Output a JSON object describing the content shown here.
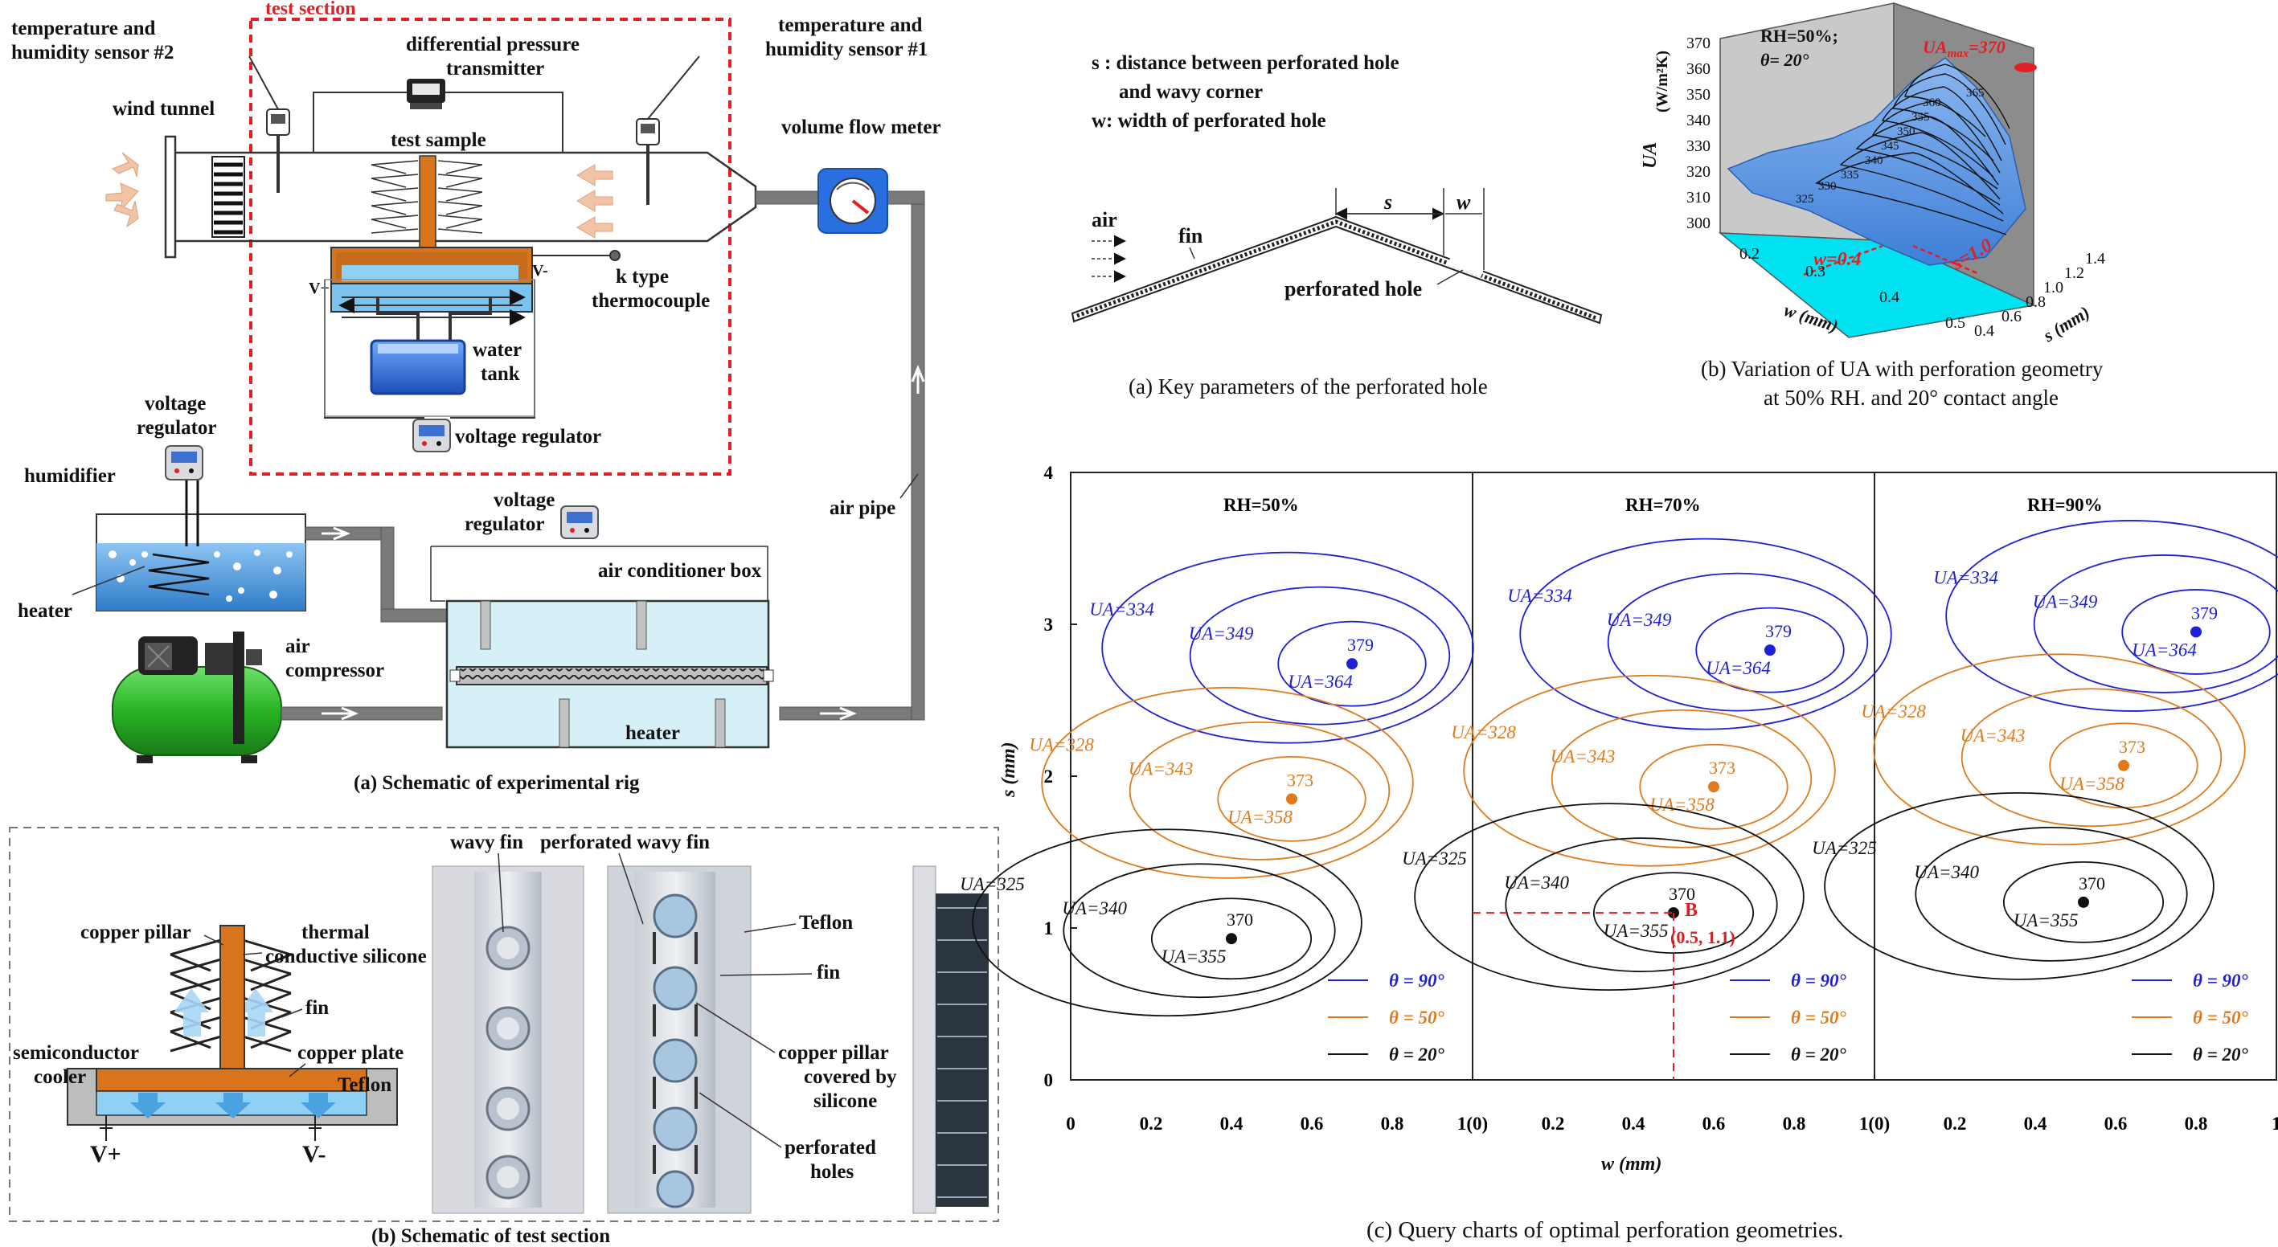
{
  "rig": {
    "test_section": "test section",
    "sensor2": [
      "temperature and",
      "humidity sensor #2"
    ],
    "sensor1": [
      "temperature and",
      "humidity sensor #1"
    ],
    "dp": [
      "differential pressure",
      "transmitter"
    ],
    "wind_tunnel": "wind tunnel",
    "test_sample": "test sample",
    "volume_flow_meter": "volume flow meter",
    "k_type": [
      "k type",
      "thermocouple"
    ],
    "v_plus": "V+",
    "v_minus": "V-",
    "water_tank": [
      "water",
      "tank"
    ],
    "voltage_regulator_inline": "voltage regulator",
    "voltage_regulator_left": [
      "voltage",
      "regulator"
    ],
    "voltage_regulator_mid": [
      "voltage",
      "regulator"
    ],
    "humidifier": "humidifier",
    "heater_left": "heater",
    "air_pipe": "air pipe",
    "air_conditioner_box": "air conditioner box",
    "air_compressor": [
      "air",
      "compressor"
    ],
    "heater_box": "heater",
    "caption": "(a) Schematic of experimental rig"
  },
  "section": {
    "copper_pillar": "copper pillar",
    "thermal": [
      "thermal",
      "conductive silicone"
    ],
    "fin": "fin",
    "semiconductor": [
      "semiconductor",
      "cooler"
    ],
    "copper_plate": "copper plate",
    "teflon": "Teflon",
    "v_plus": "V+",
    "v_minus": "V-",
    "wavy_fin": "wavy fin",
    "perforated_wavy_fin": "perforated wavy fin",
    "photo_teflon": "Teflon",
    "photo_fin": "fin",
    "copper_covered": [
      "copper pillar",
      "covered by",
      "silicone"
    ],
    "perforated_holes": [
      "perforated",
      "holes"
    ],
    "caption": "(b) Schematic of test section"
  },
  "key_params": {
    "s_def": [
      "s :  distance between perforated hole",
      "and wavy corner"
    ],
    "w_def": "w:  width of perforated hole",
    "air": "air",
    "fin": "fin",
    "s": "s",
    "w": "w",
    "perforated_hole": "perforated hole",
    "caption": "(a) Key parameters of the perforated hole"
  },
  "surface": {
    "rh_label": "RH=50%;",
    "theta_label": "θ= 20°",
    "ua_max": "UA",
    "ua_max_sub": "max",
    "ua_max_val": "=370",
    "w_marker": "w=0.4",
    "s_marker": "s=1.0",
    "z_axis": "UA",
    "z_unit": "(W/m²K)",
    "z_ticks": [
      "370",
      "360",
      "350",
      "340",
      "330",
      "320",
      "310",
      "300"
    ],
    "w_ticks": [
      "0.2",
      "0.3",
      "0.4",
      "0.5"
    ],
    "s_ticks": [
      "0.4",
      "0.6",
      "0.8",
      "1.0",
      "1.2",
      "1.4"
    ],
    "w_axis": "w (mm)",
    "s_axis": "s (mm)",
    "contour_labels": [
      "365",
      "360",
      "355",
      "350",
      "345",
      "340",
      "335",
      "330",
      "325"
    ],
    "caption": [
      "(b) Variation of UA with perforation geometry",
      "at 50% RH. and 20° contact angle"
    ]
  },
  "chart_data": {
    "type": "contour",
    "ylabel": "s (mm)",
    "xlabel": "w (mm)",
    "ylim": [
      0,
      4
    ],
    "xlim": [
      0,
      1
    ],
    "y_ticks": [
      "0",
      "1",
      "2",
      "3",
      "4"
    ],
    "x_ticks": [
      [
        "0",
        "0.2",
        "0.4",
        "0.6",
        "0.8"
      ],
      [
        "1(0)",
        "0.2",
        "0.4",
        "0.6",
        "0.8"
      ],
      [
        "1(0)",
        "0.2",
        "0.4",
        "0.6",
        "0.8",
        "1"
      ]
    ],
    "legend": [
      "θ = 90°",
      "θ = 50°",
      "θ = 20°"
    ],
    "colors": {
      "theta90": "#1f1fd6",
      "theta50": "#e07a1c",
      "theta20": "#111111",
      "marker": "#d81f26"
    },
    "panels": [
      {
        "title": "RH=50%",
        "theta90": {
          "peak": [
            0.7,
            2.74
          ],
          "peak_label": "379",
          "levels": [
            "UA=364",
            "UA=349",
            "UA=334"
          ]
        },
        "theta50": {
          "peak": [
            0.55,
            1.85
          ],
          "peak_label": "373",
          "levels": [
            "UA=358",
            "UA=343",
            "UA=328"
          ]
        },
        "theta20": {
          "peak": [
            0.4,
            0.93
          ],
          "peak_label": "370",
          "levels": [
            "UA=355",
            "UA=340",
            "UA=325"
          ]
        }
      },
      {
        "title": "RH=70%",
        "theta90": {
          "peak": [
            0.74,
            2.83
          ],
          "peak_label": "379",
          "levels": [
            "UA=364",
            "UA=349",
            "UA=334"
          ]
        },
        "theta50": {
          "peak": [
            0.6,
            1.93
          ],
          "peak_label": "373",
          "levels": [
            "UA=358",
            "UA=343",
            "UA=328"
          ]
        },
        "theta20": {
          "peak": [
            0.5,
            1.1
          ],
          "peak_label": "370",
          "levels": [
            "UA=355",
            "UA=340",
            "UA=325"
          ]
        },
        "point_b": {
          "label": "B",
          "coords": "(0.5, 1.1)",
          "x": 0.5,
          "y": 1.1
        }
      },
      {
        "title": "RH=90%",
        "theta90": {
          "peak": [
            0.8,
            2.95
          ],
          "peak_label": "379",
          "levels": [
            "UA=364",
            "UA=349",
            "UA=334"
          ]
        },
        "theta50": {
          "peak": [
            0.62,
            2.07
          ],
          "peak_label": "373",
          "levels": [
            "UA=358",
            "UA=343",
            "UA=328"
          ]
        },
        "theta20": {
          "peak": [
            0.52,
            1.17
          ],
          "peak_label": "370",
          "levels": [
            "UA=355",
            "UA=340",
            "UA=325"
          ]
        }
      }
    ],
    "caption": "(c) Query charts of optimal perforation geometries."
  }
}
